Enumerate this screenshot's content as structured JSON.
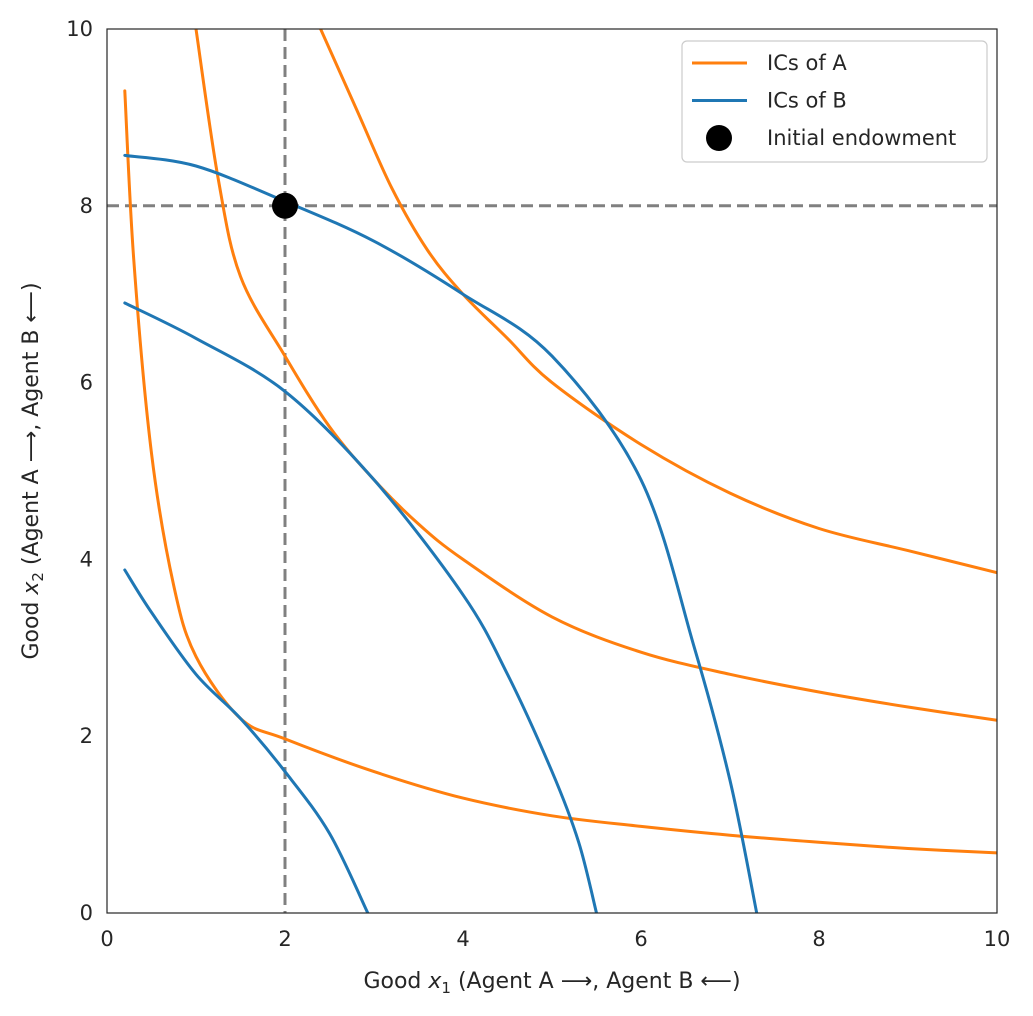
{
  "chart_data": {
    "type": "line",
    "xlabel": {
      "pre": "Good ",
      "var": "x",
      "sub": "1",
      "post": " (Agent A ⟶, Agent B ⟵)"
    },
    "ylabel": {
      "pre": "Good ",
      "var": "x",
      "sub": "2",
      "post": " (Agent A ⟶, Agent B ⟵)"
    },
    "xlim": [
      0,
      10
    ],
    "ylim": [
      0,
      10
    ],
    "xticks": [
      "0",
      "2",
      "4",
      "6",
      "8",
      "10"
    ],
    "yticks": [
      "0",
      "2",
      "4",
      "6",
      "8",
      "10"
    ],
    "grid": false,
    "legend_position": "top-right",
    "legend": [
      {
        "label": "ICs of A",
        "kind": "line",
        "color": "#ff7f0e"
      },
      {
        "label": "ICs of B",
        "kind": "line",
        "color": "#1f77b4"
      },
      {
        "label": "Initial endowment",
        "kind": "point",
        "color": "#000000"
      }
    ],
    "series": [
      {
        "name": "ICs of A",
        "color": "#ff7f0e",
        "curves": [
          {
            "x": [
              0.2,
              0.3,
              0.5,
              0.75,
              1,
              1.5,
              2,
              3,
              4,
              5,
              6,
              7,
              8,
              9,
              10
            ],
            "y": [
              9.3,
              7.4,
              5.2,
              3.7,
              2.9,
              2.2,
              1.97,
              1.6,
              1.3,
              1.1,
              0.98,
              0.88,
              0.8,
              0.73,
              0.68
            ]
          },
          {
            "x": [
              1.0,
              1.25,
              1.5,
              2,
              2.5,
              3,
              3.5,
              4,
              5,
              6,
              7,
              8,
              9,
              10
            ],
            "y": [
              10,
              8.3,
              7.2,
              6.3,
              5.5,
              4.9,
              4.4,
              4.0,
              3.35,
              2.95,
              2.7,
              2.5,
              2.33,
              2.18
            ]
          },
          {
            "x": [
              2.4,
              2.8,
              3.2,
              3.6,
              4,
              4.5,
              5,
              6,
              7,
              8,
              9,
              10
            ],
            "y": [
              10,
              9.1,
              8.2,
              7.5,
              7.0,
              6.5,
              6.0,
              5.3,
              4.75,
              4.35,
              4.1,
              3.85
            ]
          }
        ]
      },
      {
        "name": "ICs of B",
        "color": "#1f77b4",
        "curves": [
          {
            "x": [
              0.2,
              0.5,
              1,
              1.5,
              2,
              2.5,
              2.93
            ],
            "y": [
              3.88,
              3.4,
              2.7,
              2.2,
              1.6,
              0.9,
              0
            ]
          },
          {
            "x": [
              0.2,
              1,
              2,
              3,
              4,
              4.5,
              5,
              5.3,
              5.5
            ],
            "y": [
              6.9,
              6.5,
              5.9,
              4.9,
              3.6,
              2.7,
              1.6,
              0.8,
              0
            ]
          },
          {
            "x": [
              0.2,
              1,
              2,
              3,
              4,
              5,
              6,
              6.6,
              7,
              7.3
            ],
            "y": [
              8.57,
              8.45,
              8.05,
              7.6,
              7.0,
              6.3,
              4.9,
              3.0,
              1.5,
              0
            ]
          }
        ]
      }
    ],
    "reference_lines": {
      "x": 2,
      "y": 8,
      "color": "#808080",
      "style": "dashed"
    },
    "endowment": {
      "x": 2,
      "y": 8,
      "color": "#000000"
    }
  }
}
